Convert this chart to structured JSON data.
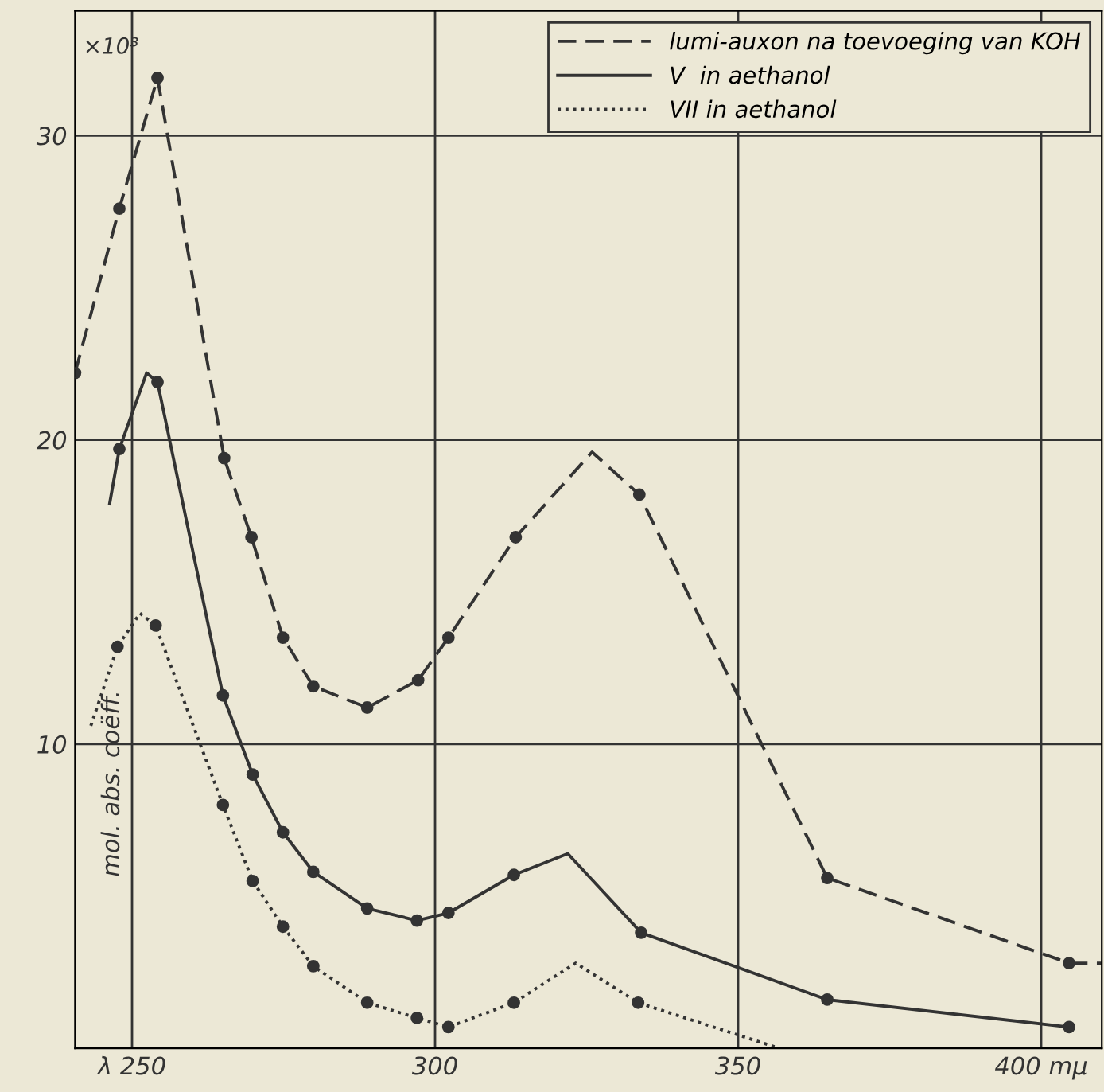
{
  "chart_data": {
    "type": "line",
    "xlabel": null,
    "ylabel": "mol. abs. coëff.",
    "annotations": [
      "×10³"
    ],
    "xlim": [
      240.6,
      410
    ],
    "ylim": [
      0,
      34.1
    ],
    "xticks": [
      {
        "value": 250,
        "label": "λ 250"
      },
      300,
      350,
      {
        "value": 400,
        "label": "400 mμ"
      }
    ],
    "yticks": [
      10,
      20,
      30
    ],
    "grid": true,
    "legend": "top right",
    "marker": "none",
    "series": [
      {
        "name": "lumi-auxon na toevoeging van KOH",
        "color": "#333333",
        "line_style": "dashed",
        "x": [
          240.6,
          247.9,
          254.2,
          265.2,
          269.7,
          274.9,
          279.9,
          288.8,
          297.2,
          302.2,
          313.3,
          325.9,
          333.7,
          364.7,
          404.6,
          410
        ],
        "values": [
          22.2,
          27.6,
          31.9,
          19.4,
          16.8,
          13.5,
          11.9,
          11.2,
          12.1,
          13.5,
          16.8,
          19.6,
          18.2,
          5.6,
          2.8,
          2.8
        ]
      },
      {
        "name": "V  in aethanol",
        "color": "#333333",
        "line_style": "solid",
        "x": [
          246.3,
          247.9,
          252.4,
          254.2,
          265.0,
          269.9,
          274.9,
          279.9,
          288.8,
          297.0,
          302.2,
          313.0,
          321.9,
          334.0,
          364.7,
          404.6
        ],
        "values": [
          17.9,
          19.7,
          22.2,
          21.9,
          11.6,
          9.0,
          7.1,
          5.8,
          4.6,
          4.2,
          4.45,
          5.7,
          6.4,
          3.8,
          1.6,
          0.7
        ]
      },
      {
        "name": "VII in aethanol",
        "color": "#333333",
        "line_style": "dotted",
        "x": [
          243.2,
          247.6,
          251.3,
          253.9,
          265.0,
          269.9,
          274.9,
          279.9,
          288.8,
          297.0,
          302.2,
          313.0,
          323.2,
          333.5,
          356.8
        ],
        "values": [
          10.6,
          13.2,
          14.3,
          13.9,
          8.0,
          5.5,
          4.0,
          2.7,
          1.5,
          1.0,
          0.7,
          1.5,
          2.8,
          1.5,
          0
        ]
      },
      {
        "type": "scatter",
        "marker": "circle",
        "color": "#333333",
        "x": [
          240.6,
          247.9,
          254.2,
          265.2,
          269.7,
          274.9,
          279.9,
          288.8,
          297.2,
          302.2,
          313.3,
          333.7,
          364.7,
          404.6
        ],
        "values": [
          22.2,
          27.6,
          31.9,
          19.4,
          16.8,
          13.5,
          11.9,
          11.2,
          12.1,
          13.5,
          16.8,
          18.2,
          5.6,
          2.8
        ]
      },
      {
        "type": "scatter",
        "marker": "circle",
        "color": "#333333",
        "x": [
          247.9,
          254.2,
          265.0,
          269.9,
          274.9,
          279.9,
          288.8,
          297.0,
          302.2,
          313.0,
          334.0,
          364.7,
          404.6
        ],
        "values": [
          19.7,
          21.9,
          11.6,
          9.0,
          7.1,
          5.8,
          4.6,
          4.2,
          4.45,
          5.7,
          3.8,
          1.6,
          0.7
        ]
      },
      {
        "type": "scatter",
        "marker": "circle",
        "color": "#333333",
        "x": [
          247.6,
          253.9,
          265.0,
          269.9,
          274.9,
          279.9,
          288.8,
          297.0,
          302.2,
          313.0,
          333.5
        ],
        "values": [
          13.2,
          13.9,
          8.0,
          5.5,
          4.0,
          2.7,
          1.5,
          1.0,
          0.7,
          1.5,
          1.5
        ]
      }
    ]
  }
}
